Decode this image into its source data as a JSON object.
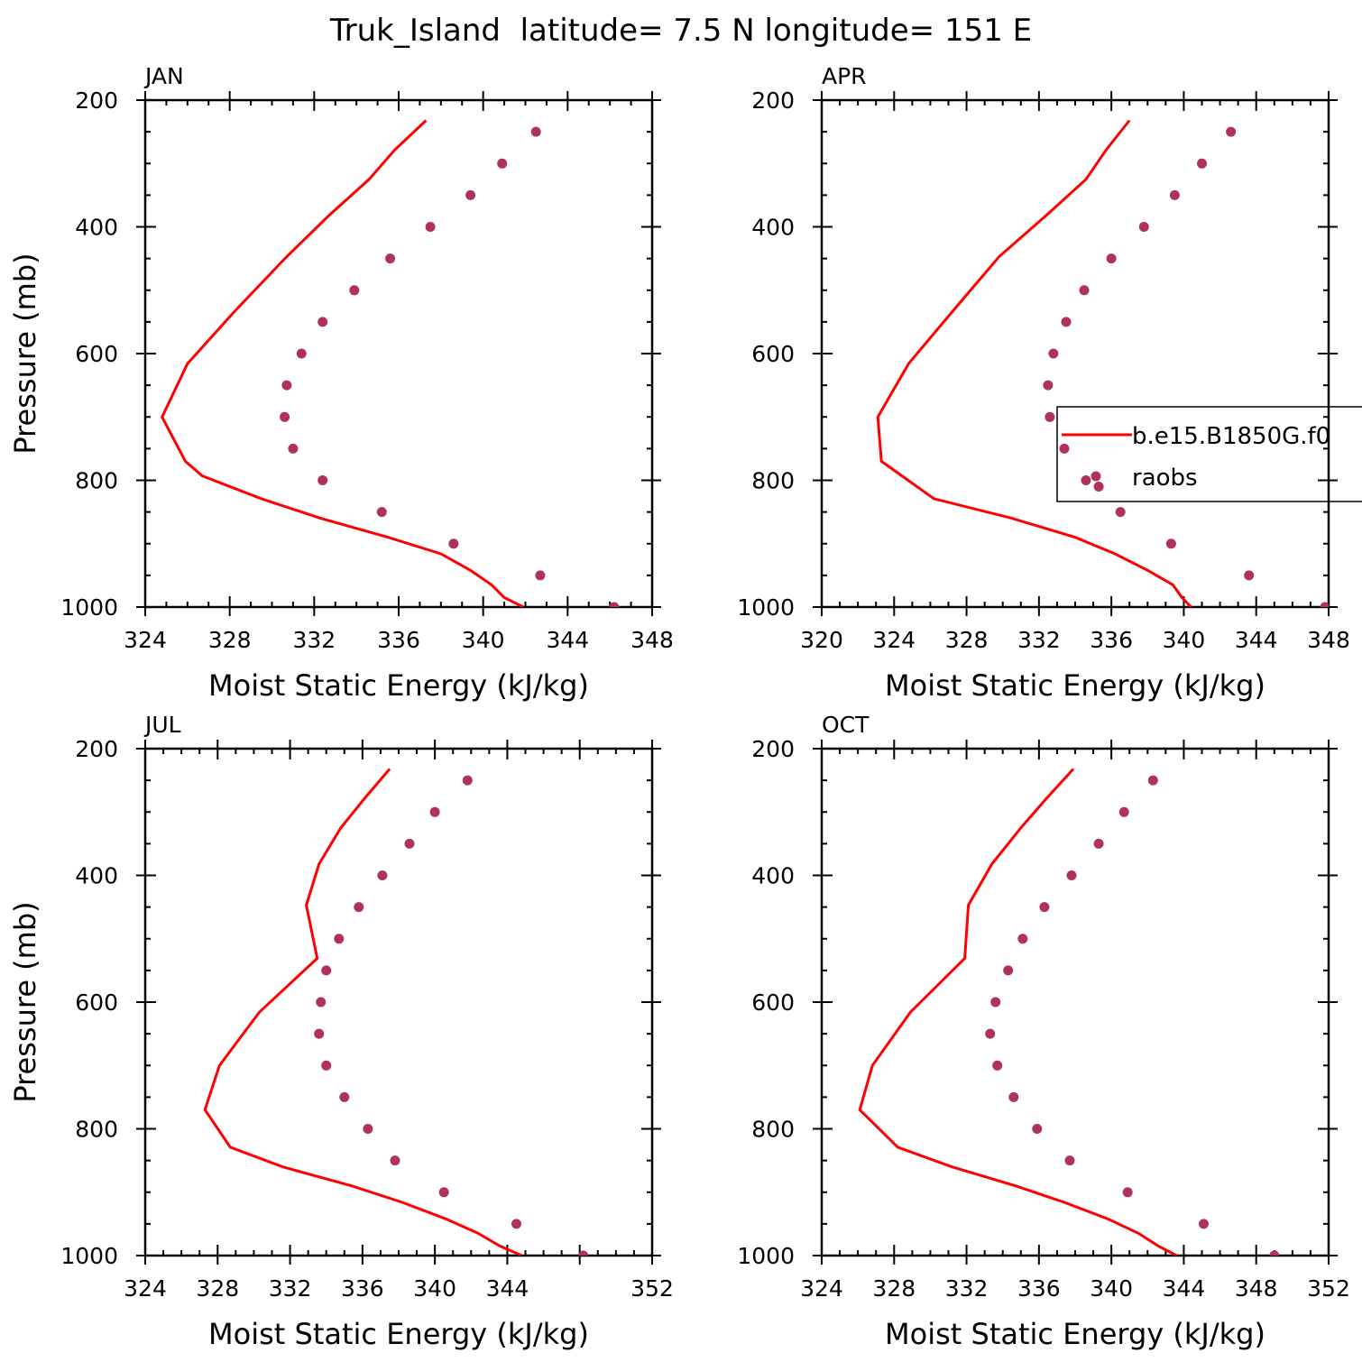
{
  "figure_title": "Truk_Island  latitude= 7.5 N longitude= 151 E",
  "colors": {
    "model": "#ff0000",
    "obs": "#b03060",
    "axis": "#000000"
  },
  "legend": {
    "model_label": "b.e15.B1850G.f0",
    "obs_label": "raobs"
  },
  "chart_data": [
    {
      "type": "line",
      "title": "JAN",
      "xlabel": "Moist Static Energy (kJ/kg)",
      "ylabel": "Pressure (mb)",
      "xlim": [
        324,
        348
      ],
      "ylim": [
        200,
        1000
      ],
      "x_ticks": [
        "324",
        "328",
        "332",
        "336",
        "340",
        "344",
        "348"
      ],
      "y_ticks": [
        "200",
        "400",
        "600",
        "800",
        "1000"
      ],
      "series": [
        {
          "name": "b.e15.B1850G.f0",
          "kind": "line",
          "x": [
            341.9,
            341.0,
            340.4,
            339.4,
            338.0,
            335.5,
            332.3,
            329.5,
            326.7,
            325.9,
            324.8,
            326.0,
            328.3,
            330.7,
            332.7,
            334.6,
            335.8,
            337.3
          ],
          "y": [
            1000,
            985,
            965,
            942,
            916,
            890,
            860,
            829,
            793,
            770,
            700,
            616,
            531,
            447,
            382,
            325,
            279,
            232
          ]
        },
        {
          "name": "raobs",
          "kind": "scatter",
          "x": [
            346.2,
            342.7,
            338.6,
            335.2,
            332.4,
            331.0,
            330.6,
            330.7,
            331.4,
            332.4,
            333.9,
            335.6,
            337.5,
            339.4,
            340.9,
            342.5
          ],
          "y": [
            1000,
            950,
            900,
            850,
            800,
            750,
            700,
            650,
            600,
            550,
            500,
            450,
            400,
            350,
            300,
            250
          ]
        }
      ]
    },
    {
      "type": "line",
      "title": "APR",
      "xlabel": "Moist Static Energy (kJ/kg)",
      "ylabel": "",
      "xlim": [
        320,
        348
      ],
      "ylim": [
        200,
        1000
      ],
      "x_ticks": [
        "320",
        "324",
        "328",
        "332",
        "336",
        "340",
        "344",
        "348"
      ],
      "y_ticks": [
        "200",
        "400",
        "600",
        "800",
        "1000"
      ],
      "series": [
        {
          "name": "b.e15.B1850G.f0",
          "kind": "line",
          "x": [
            340.4,
            339.9,
            339.4,
            338.0,
            336.2,
            334.0,
            330.5,
            326.2,
            323.3,
            323.1,
            324.8,
            327.3,
            329.8,
            332.4,
            334.6,
            335.7,
            337.0
          ],
          "y": [
            1000,
            985,
            965,
            942,
            916,
            890,
            860,
            829,
            770,
            700,
            616,
            531,
            447,
            382,
            325,
            279,
            232
          ]
        },
        {
          "name": "raobs",
          "kind": "scatter",
          "x": [
            347.8,
            343.6,
            339.3,
            336.5,
            335.3,
            334.6,
            333.4,
            332.6,
            332.5,
            332.8,
            333.5,
            334.5,
            336.0,
            337.8,
            339.5,
            341.0,
            342.6
          ],
          "y": [
            1000,
            950,
            900,
            850,
            810,
            800,
            750,
            700,
            650,
            600,
            550,
            500,
            450,
            400,
            350,
            300,
            250
          ]
        }
      ]
    },
    {
      "type": "line",
      "title": "JUL",
      "xlabel": "Moist Static Energy (kJ/kg)",
      "ylabel": "Pressure (mb)",
      "xlim": [
        324,
        352
      ],
      "ylim": [
        200,
        1000
      ],
      "x_ticks": [
        "324",
        "328",
        "332",
        "336",
        "340",
        "344",
        "352"
      ],
      "y_ticks": [
        "200",
        "400",
        "600",
        "800",
        "1000"
      ],
      "series": [
        {
          "name": "b.e15.B1850G.f0",
          "kind": "line",
          "x": [
            344.8,
            343.6,
            342.4,
            340.6,
            338.2,
            335.4,
            331.6,
            328.7,
            327.3,
            328.1,
            330.3,
            333.5,
            332.9,
            333.6,
            334.8,
            336.1,
            337.5
          ],
          "y": [
            1000,
            985,
            965,
            942,
            916,
            890,
            860,
            829,
            770,
            700,
            616,
            531,
            447,
            382,
            325,
            279,
            232
          ]
        },
        {
          "name": "raobs",
          "kind": "scatter",
          "x": [
            348.2,
            344.5,
            340.5,
            337.8,
            336.3,
            335.0,
            334.0,
            333.6,
            333.7,
            334.0,
            334.7,
            335.8,
            337.1,
            338.6,
            340.0,
            341.8
          ],
          "y": [
            1000,
            950,
            900,
            850,
            800,
            750,
            700,
            650,
            600,
            550,
            500,
            450,
            400,
            350,
            300,
            250
          ]
        }
      ]
    },
    {
      "type": "line",
      "title": "OCT",
      "xlabel": "Moist Static Energy (kJ/kg)",
      "ylabel": "",
      "xlim": [
        324,
        352
      ],
      "ylim": [
        200,
        1000
      ],
      "x_ticks": [
        "324",
        "328",
        "332",
        "336",
        "340",
        "344",
        "348",
        "352"
      ],
      "y_ticks": [
        "200",
        "400",
        "600",
        "800",
        "1000"
      ],
      "series": [
        {
          "name": "b.e15.B1850G.f0",
          "kind": "line",
          "x": [
            343.6,
            342.6,
            341.5,
            339.8,
            337.4,
            334.7,
            331.2,
            328.2,
            326.1,
            326.8,
            328.9,
            331.9,
            332.1,
            333.4,
            335.0,
            336.4,
            337.9
          ],
          "y": [
            1000,
            985,
            965,
            942,
            916,
            890,
            860,
            829,
            770,
            700,
            616,
            531,
            447,
            382,
            325,
            279,
            232
          ]
        },
        {
          "name": "raobs",
          "kind": "scatter",
          "x": [
            349.0,
            345.1,
            340.9,
            337.7,
            335.9,
            334.6,
            333.7,
            333.3,
            333.6,
            334.3,
            335.1,
            336.3,
            337.8,
            339.3,
            340.7,
            342.3
          ],
          "y": [
            1000,
            950,
            900,
            850,
            800,
            750,
            700,
            650,
            600,
            550,
            500,
            450,
            400,
            350,
            300,
            250
          ]
        }
      ]
    }
  ]
}
